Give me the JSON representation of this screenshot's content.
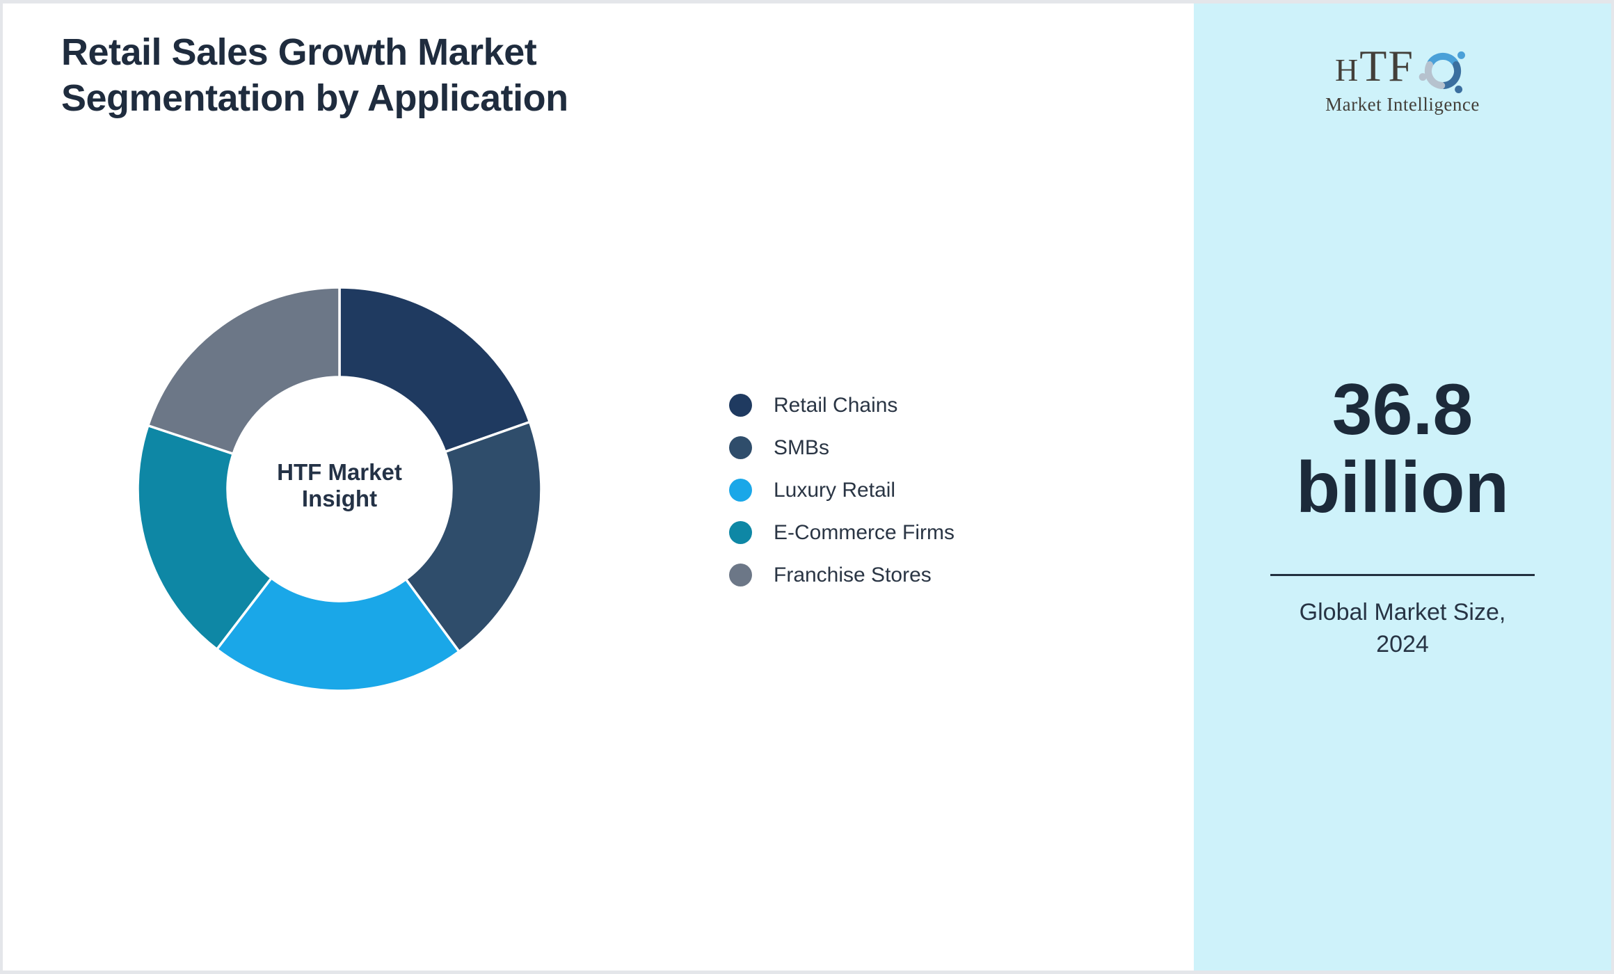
{
  "page": {
    "title_lines": [
      "Retail Sales Growth Market",
      "Segmentation by Application"
    ]
  },
  "chart_data": {
    "type": "pie",
    "subtype": "donut",
    "title": "Retail Sales Growth Market Segmentation by Application",
    "labels": [
      "Retail Chains",
      "SMBs",
      "Luxury Retail",
      "E-Commerce Firms",
      "Franchise Stores"
    ],
    "values": [
      19.6,
      20.3,
      20.5,
      19.7,
      19.9
    ],
    "values_note": "percent of ring, estimated from arc angles (no numeric labels printed on chart)",
    "colors": [
      "#1f3a60",
      "#2f4d6b",
      "#1aa7e8",
      "#0e87a5",
      "#6c7787"
    ],
    "center_label": "HTF Market Insight",
    "hole_ratio": 0.555,
    "start_angle_deg": 0,
    "clockwise": true,
    "separator_color": "#ffffff",
    "legend_position": "right"
  },
  "sidebar": {
    "logo_text": "HTF",
    "logo_subtext": "Market Intelligence",
    "stat_lines": [
      "36.8",
      "billion"
    ],
    "caption_lines": [
      "Global Market Size,",
      "2024"
    ]
  },
  "colors": {
    "panel_bg": "#cef2fa",
    "page_border": "#e4e6ea",
    "title_text": "#1f2c3e",
    "legend_text": "#2a3544",
    "center_label_text": "#243246",
    "stat_text": "#1c2a3a",
    "caption_text": "#273444",
    "divider": "#22303e",
    "logo_text": "#433f39",
    "logo_mark": [
      "#4aa0d8",
      "#3b6f9f",
      "#b6c2ce"
    ]
  }
}
